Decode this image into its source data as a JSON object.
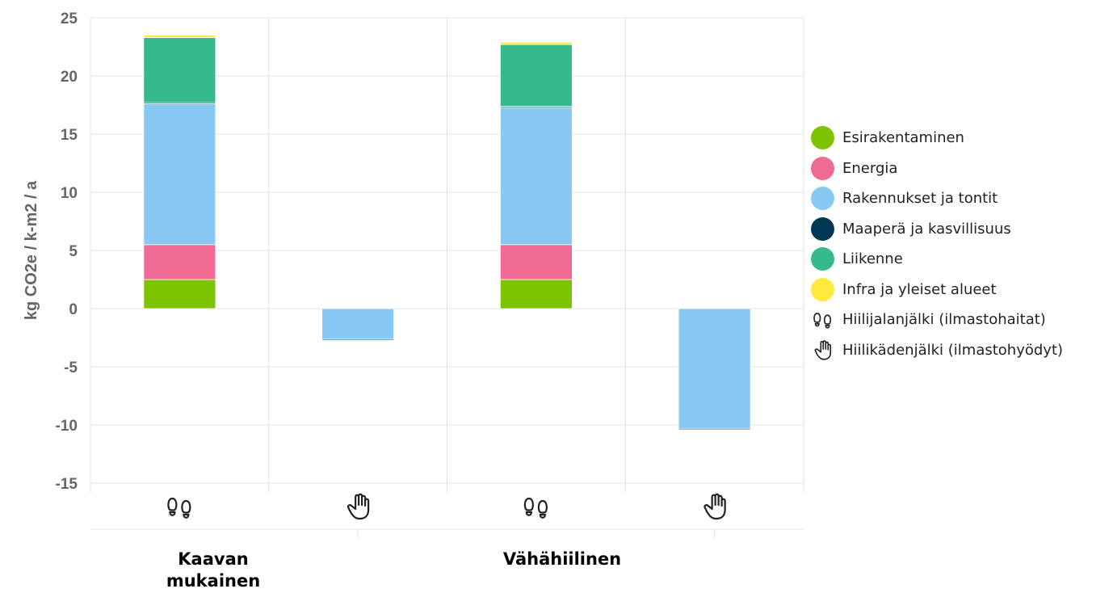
{
  "chart_data": {
    "type": "bar",
    "stacked": true,
    "title": "",
    "xlabel": "",
    "ylabel": "kg CO2e / k-m2 / a",
    "ylim": [
      -15,
      25
    ],
    "yticks": [
      25,
      20,
      15,
      10,
      5,
      0,
      -5,
      -10,
      -15
    ],
    "grid": true,
    "legend_position": "right",
    "groups": [
      "Kaavan mukainen",
      "Vähähiilinen"
    ],
    "bar_kinds": [
      "footprint",
      "handprint"
    ],
    "series": [
      {
        "name": "Esirakentaminen",
        "color": "#7cc400",
        "values": [
          2.5,
          0,
          2.5,
          0
        ]
      },
      {
        "name": "Energia",
        "color": "#ef6b93",
        "values": [
          3.0,
          0,
          3.0,
          0
        ]
      },
      {
        "name": "Rakennukset ja tontit",
        "color": "#87c9f2",
        "values": [
          12.1,
          -2.6,
          11.8,
          -10.3
        ]
      },
      {
        "name": "Maaperä ja kasvillisuus",
        "color": "#003852",
        "values": [
          0.1,
          -0.1,
          0.1,
          -0.1
        ]
      },
      {
        "name": "Liikenne",
        "color": "#36b98b",
        "values": [
          5.6,
          0,
          5.3,
          0
        ]
      },
      {
        "name": "Infra ja yleiset alueet",
        "color": "#ffe93f",
        "values": [
          0.2,
          0,
          0.2,
          0
        ]
      }
    ],
    "icon_legend": [
      {
        "icon": "footprint-icon",
        "label": "Hiilijalanjälki (ilmastohaitat)"
      },
      {
        "icon": "hand-icon",
        "label": "Hiilikädenjälki (ilmastohyödyt)"
      }
    ]
  }
}
